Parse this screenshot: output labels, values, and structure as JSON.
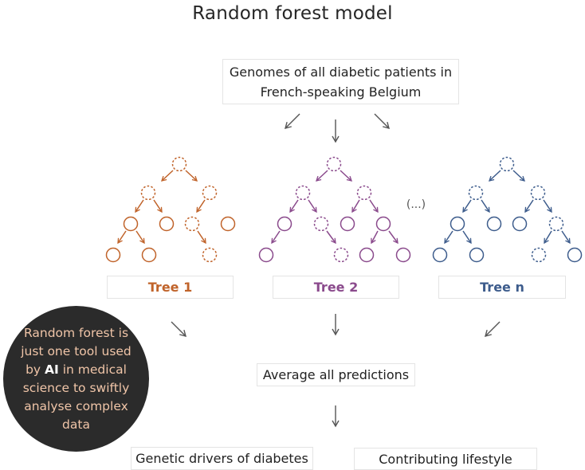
{
  "title": "Random forest model",
  "input_box": {
    "line1": "Genomes of all diabetic patients in",
    "line2": "French-speaking Belgium"
  },
  "ellipsis": "(...)",
  "trees": [
    {
      "label": "Tree 1",
      "color": "#c0632a"
    },
    {
      "label": "Tree 2",
      "color": "#8a4a8c"
    },
    {
      "label": "Tree n",
      "color": "#3d5c8c"
    }
  ],
  "average_box": {
    "label": "Average all predictions"
  },
  "outputs": [
    {
      "label": "Genetic drivers of diabetes"
    },
    {
      "label": "Contributing lifestyle"
    }
  ],
  "note": {
    "before": "Random forest is just one tool used by",
    "highlight": "AI",
    "after": "in medical science to swiftly analyse complex data"
  },
  "colors": {
    "arrow": "#555555",
    "note_bg": "#2b2b2b",
    "note_text": "#f0c5a8"
  }
}
